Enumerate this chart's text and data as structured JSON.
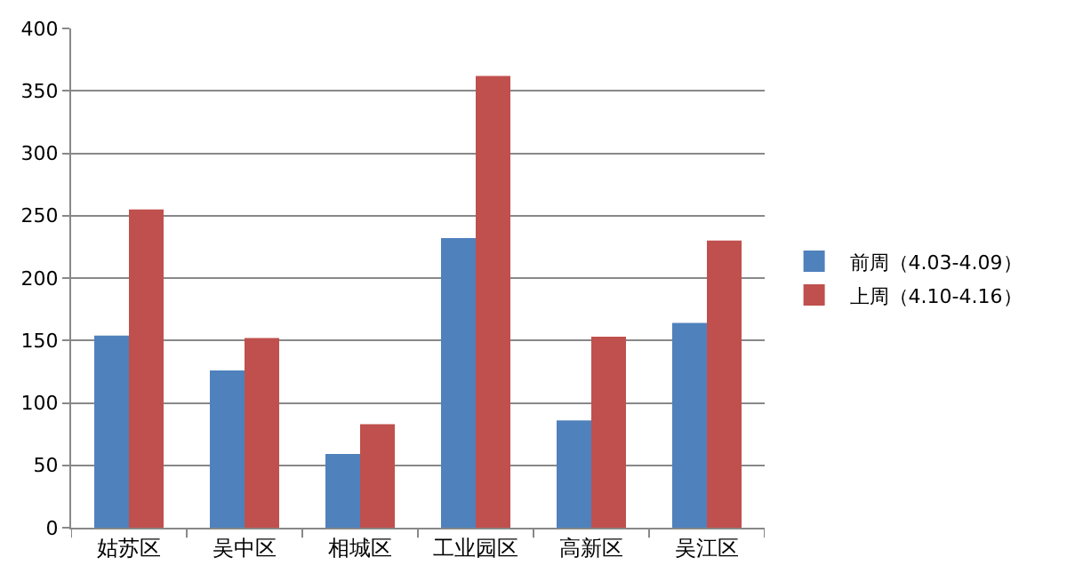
{
  "chart_data": {
    "type": "bar",
    "categories": [
      "姑苏区",
      "吴中区",
      "相城区",
      "工业园区",
      "高新区",
      "吴江区"
    ],
    "series": [
      {
        "name": "前周（4.03-4.09）",
        "color": "#4f81bd",
        "values": [
          154,
          126,
          59,
          232,
          86,
          164
        ]
      },
      {
        "name": "上周（4.10-4.16）",
        "color": "#c0504d",
        "values": [
          255,
          152,
          83,
          362,
          153,
          230
        ]
      }
    ],
    "ylim": [
      0,
      400
    ],
    "yticks": [
      0,
      50,
      100,
      150,
      200,
      250,
      300,
      350,
      400
    ],
    "grid": "y",
    "legend": "right"
  }
}
